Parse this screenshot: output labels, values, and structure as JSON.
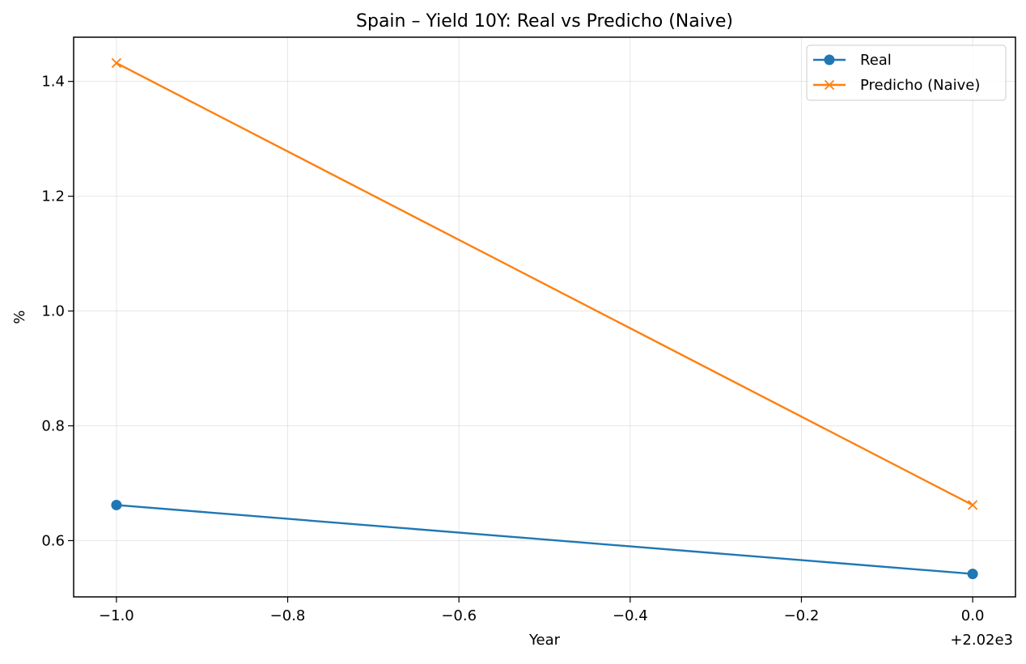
{
  "chart_data": {
    "type": "line",
    "title": "Spain – Yield 10Y: Real vs Predicho (Naive)",
    "xlabel": "Year",
    "ylabel": "%",
    "x_offset_label": "+2.02e3",
    "x": [
      -1.0,
      0.0
    ],
    "xlim": [
      -1.05,
      0.05
    ],
    "ylim": [
      0.502,
      1.477
    ],
    "x_ticks": [
      -1.0,
      -0.8,
      -0.6,
      -0.4,
      -0.2,
      0.0
    ],
    "x_tick_labels": [
      "−1.0",
      "−0.8",
      "−0.6",
      "−0.4",
      "−0.2",
      "0.0"
    ],
    "y_ticks": [
      0.6,
      0.8,
      1.0,
      1.2,
      1.4
    ],
    "y_tick_labels": [
      "0.6",
      "0.8",
      "1.0",
      "1.2",
      "1.4"
    ],
    "grid": true,
    "legend_position": "top-right",
    "series": [
      {
        "name": "Real",
        "values": [
          0.662,
          0.542
        ],
        "color": "#1f77b4",
        "marker": "circle"
      },
      {
        "name": "Predicho (Naive)",
        "values": [
          1.432,
          0.662
        ],
        "color": "#ff7f0e",
        "marker": "x"
      }
    ]
  }
}
